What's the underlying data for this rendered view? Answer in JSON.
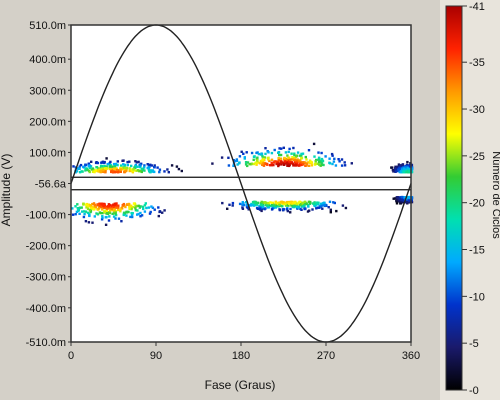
{
  "chart_data": {
    "type": "heatmap",
    "xlabel": "Fase (Graus)",
    "ylabel": "Amplitude (V)",
    "colorbar_label": "Número de Ciclos",
    "x_ticks": [
      "0",
      "90",
      "180",
      "270",
      "360"
    ],
    "y_ticks": [
      "510.0m",
      "400.0m",
      "300.0m",
      "200.0m",
      "100.0m",
      "-56.6a",
      "-100.0m",
      "-200.0m",
      "-300.0m",
      "-400.0m",
      "-510.0m"
    ],
    "colorbar_ticks": [
      "0",
      "5",
      "10",
      "15",
      "20",
      "25",
      "30",
      "35",
      "41"
    ],
    "xlim": [
      0,
      360
    ],
    "ylim": [
      -510,
      510
    ],
    "y_unit": "mV",
    "clim": [
      0,
      41
    ],
    "reference_sine": {
      "amplitude": 510,
      "phase_deg": 0,
      "period_deg": 360
    },
    "zero_band": [
      -20,
      20
    ],
    "clusters": [
      {
        "name": "pos-0-90",
        "phase_center": 45,
        "phase_spread": 35,
        "amp_center": 40,
        "amp_spread": 18,
        "peak": 35
      },
      {
        "name": "pos-180-270",
        "phase_center": 225,
        "phase_spread": 40,
        "amp_center": 60,
        "amp_spread": 30,
        "peak": 41
      },
      {
        "name": "pos-360",
        "phase_center": 355,
        "phase_spread": 10,
        "amp_center": 40,
        "amp_spread": 15,
        "peak": 20
      },
      {
        "name": "neg-0-90",
        "phase_center": 40,
        "phase_spread": 35,
        "amp_center": -60,
        "amp_spread": 30,
        "peak": 38
      },
      {
        "name": "neg-180-270",
        "phase_center": 225,
        "phase_spread": 40,
        "amp_center": -55,
        "amp_spread": 15,
        "peak": 30
      },
      {
        "name": "neg-360",
        "phase_center": 355,
        "phase_spread": 8,
        "amp_center": -40,
        "amp_spread": 10,
        "peak": 15
      }
    ]
  },
  "colors": {
    "window_bg": "#d4d0c8",
    "plot_bg": "#ffffff",
    "sine": "#222222",
    "colormap": [
      "#000000",
      "#1a1a6b",
      "#0033cc",
      "#00aaff",
      "#00e0b0",
      "#33cc33",
      "#ffff00",
      "#ff9900",
      "#ff2200",
      "#aa0000"
    ]
  }
}
